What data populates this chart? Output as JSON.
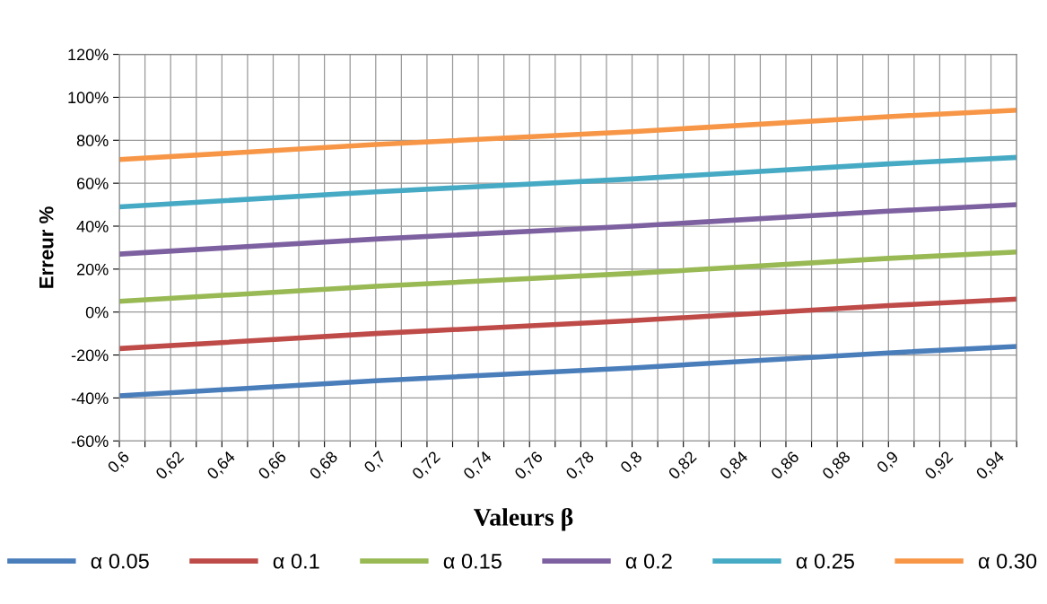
{
  "chart_data": {
    "type": "line",
    "xlabel": "Valeurs β",
    "ylabel": "Erreur %",
    "x": [
      0.6,
      0.7,
      0.8,
      0.9,
      0.95
    ],
    "xlim": [
      0.6,
      0.95
    ],
    "xticks": [
      {
        "value": 0.6,
        "label": "0,6"
      },
      {
        "value": 0.61,
        "label": null
      },
      {
        "value": 0.62,
        "label": "0,62"
      },
      {
        "value": 0.63,
        "label": null
      },
      {
        "value": 0.64,
        "label": "0,64"
      },
      {
        "value": 0.65,
        "label": null
      },
      {
        "value": 0.66,
        "label": "0,66"
      },
      {
        "value": 0.67,
        "label": null
      },
      {
        "value": 0.68,
        "label": "0,68"
      },
      {
        "value": 0.69,
        "label": null
      },
      {
        "value": 0.7,
        "label": "0,7"
      },
      {
        "value": 0.71,
        "label": null
      },
      {
        "value": 0.72,
        "label": "0,72"
      },
      {
        "value": 0.73,
        "label": null
      },
      {
        "value": 0.74,
        "label": "0,74"
      },
      {
        "value": 0.75,
        "label": null
      },
      {
        "value": 0.76,
        "label": "0,76"
      },
      {
        "value": 0.77,
        "label": null
      },
      {
        "value": 0.78,
        "label": "0,78"
      },
      {
        "value": 0.79,
        "label": null
      },
      {
        "value": 0.8,
        "label": "0,8"
      },
      {
        "value": 0.81,
        "label": null
      },
      {
        "value": 0.82,
        "label": "0,82"
      },
      {
        "value": 0.83,
        "label": null
      },
      {
        "value": 0.84,
        "label": "0,84"
      },
      {
        "value": 0.85,
        "label": null
      },
      {
        "value": 0.86,
        "label": "0,86"
      },
      {
        "value": 0.87,
        "label": null
      },
      {
        "value": 0.88,
        "label": "0,88"
      },
      {
        "value": 0.89,
        "label": null
      },
      {
        "value": 0.9,
        "label": "0,9"
      },
      {
        "value": 0.91,
        "label": null
      },
      {
        "value": 0.92,
        "label": "0,92"
      },
      {
        "value": 0.93,
        "label": null
      },
      {
        "value": 0.94,
        "label": "0,94"
      },
      {
        "value": 0.95,
        "label": null
      }
    ],
    "ylim": [
      -60,
      120
    ],
    "yticks": [
      {
        "value": -60,
        "label": "-60%"
      },
      {
        "value": -40,
        "label": "-40%"
      },
      {
        "value": -20,
        "label": "-20%"
      },
      {
        "value": 0,
        "label": "0%"
      },
      {
        "value": 20,
        "label": "20%"
      },
      {
        "value": 40,
        "label": "40%"
      },
      {
        "value": 60,
        "label": "60%"
      },
      {
        "value": 80,
        "label": "80%"
      },
      {
        "value": 100,
        "label": "100%"
      },
      {
        "value": 120,
        "label": "120%"
      }
    ],
    "grid": true,
    "legend": "bottom",
    "marker": "none",
    "line_style": "solid",
    "series": [
      {
        "name": "α 0.05",
        "color": "#4a7ebb",
        "values": [
          -39,
          -32,
          -26,
          -19,
          -16
        ]
      },
      {
        "name": "α 0.1",
        "color": "#be4b48",
        "values": [
          -17,
          -10,
          -4,
          3,
          6
        ]
      },
      {
        "name": "α 0.15",
        "color": "#98b954",
        "values": [
          5,
          12,
          18,
          25,
          28
        ]
      },
      {
        "name": "α 0.2",
        "color": "#7d60a0",
        "values": [
          27,
          34,
          40,
          47,
          50
        ]
      },
      {
        "name": "α 0.25",
        "color": "#46aac5",
        "values": [
          49,
          56,
          62,
          69,
          72
        ]
      },
      {
        "name": "α 0.30",
        "color": "#f79646",
        "values": [
          71,
          78,
          84,
          91,
          94
        ]
      }
    ]
  }
}
